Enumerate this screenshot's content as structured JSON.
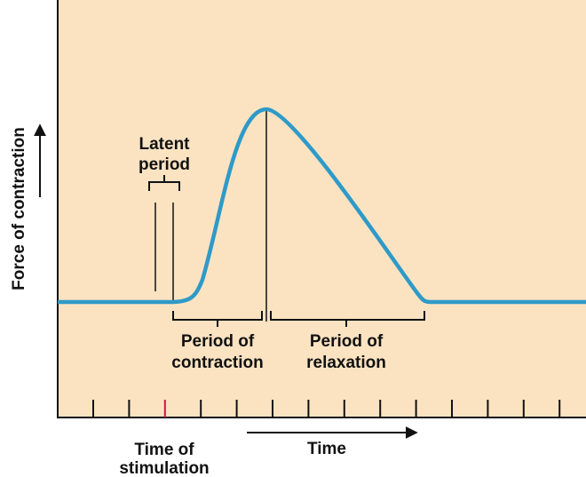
{
  "y_axis": {
    "label": "Force of contraction"
  },
  "x_axis": {
    "label": "Time"
  },
  "annotations": {
    "latent": [
      "Latent",
      "period"
    ],
    "contraction": [
      "Period of",
      "contraction"
    ],
    "relaxation": [
      "Period of",
      "relaxation"
    ],
    "stimulation": [
      "Time of",
      "stimulation"
    ]
  }
}
